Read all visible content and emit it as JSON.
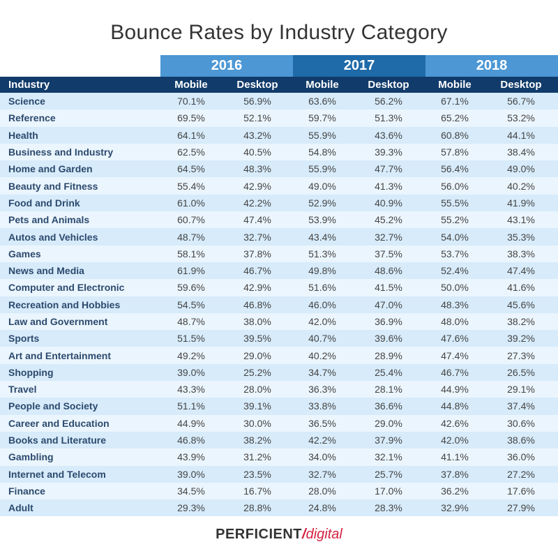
{
  "chart_data": {
    "type": "table",
    "title": "Bounce Rates by Industry Category",
    "years": [
      "2016",
      "2017",
      "2018"
    ],
    "columns": [
      "Industry",
      "Mobile",
      "Desktop",
      "Mobile",
      "Desktop",
      "Mobile",
      "Desktop"
    ],
    "rows": [
      [
        "Science",
        "70.1%",
        "56.9%",
        "63.6%",
        "56.2%",
        "67.1%",
        "56.7%"
      ],
      [
        "Reference",
        "69.5%",
        "52.1%",
        "59.7%",
        "51.3%",
        "65.2%",
        "53.2%"
      ],
      [
        "Health",
        "64.1%",
        "43.2%",
        "55.9%",
        "43.6%",
        "60.8%",
        "44.1%"
      ],
      [
        "Business and Industry",
        "62.5%",
        "40.5%",
        "54.8%",
        "39.3%",
        "57.8%",
        "38.4%"
      ],
      [
        "Home and Garden",
        "64.5%",
        "48.3%",
        "55.9%",
        "47.7%",
        "56.4%",
        "49.0%"
      ],
      [
        "Beauty and Fitness",
        "55.4%",
        "42.9%",
        "49.0%",
        "41.3%",
        "56.0%",
        "40.2%"
      ],
      [
        "Food and Drink",
        "61.0%",
        "42.2%",
        "52.9%",
        "40.9%",
        "55.5%",
        "41.9%"
      ],
      [
        "Pets and Animals",
        "60.7%",
        "47.4%",
        "53.9%",
        "45.2%",
        "55.2%",
        "43.1%"
      ],
      [
        "Autos and Vehicles",
        "48.7%",
        "32.7%",
        "43.4%",
        "32.7%",
        "54.0%",
        "35.3%"
      ],
      [
        "Games",
        "58.1%",
        "37.8%",
        "51.3%",
        "37.5%",
        "53.7%",
        "38.3%"
      ],
      [
        "News and Media",
        "61.9%",
        "46.7%",
        "49.8%",
        "48.6%",
        "52.4%",
        "47.4%"
      ],
      [
        "Computer and Electronic",
        "59.6%",
        "42.9%",
        "51.6%",
        "41.5%",
        "50.0%",
        "41.6%"
      ],
      [
        "Recreation and Hobbies",
        "54.5%",
        "46.8%",
        "46.0%",
        "47.0%",
        "48.3%",
        "45.6%"
      ],
      [
        "Law and Government",
        "48.7%",
        "38.0%",
        "42.0%",
        "36.9%",
        "48.0%",
        "38.2%"
      ],
      [
        "Sports",
        "51.5%",
        "39.5%",
        "40.7%",
        "39.6%",
        "47.6%",
        "39.2%"
      ],
      [
        "Art and Entertainment",
        "49.2%",
        "29.0%",
        "40.2%",
        "28.9%",
        "47.4%",
        "27.3%"
      ],
      [
        "Shopping",
        "39.0%",
        "25.2%",
        "34.7%",
        "25.4%",
        "46.7%",
        "26.5%"
      ],
      [
        "Travel",
        "43.3%",
        "28.0%",
        "36.3%",
        "28.1%",
        "44.9%",
        "29.1%"
      ],
      [
        "People and Society",
        "51.1%",
        "39.1%",
        "33.8%",
        "36.6%",
        "44.8%",
        "37.4%"
      ],
      [
        "Career and Education",
        "44.9%",
        "30.0%",
        "36.5%",
        "29.0%",
        "42.6%",
        "30.6%"
      ],
      [
        "Books and Literature",
        "46.8%",
        "38.2%",
        "42.2%",
        "37.9%",
        "42.0%",
        "38.6%"
      ],
      [
        "Gambling",
        "43.9%",
        "31.2%",
        "34.0%",
        "32.1%",
        "41.1%",
        "36.0%"
      ],
      [
        "Internet and Telecom",
        "39.0%",
        "23.5%",
        "32.7%",
        "25.7%",
        "37.8%",
        "27.2%"
      ],
      [
        "Finance",
        "34.5%",
        "16.7%",
        "28.0%",
        "17.0%",
        "36.2%",
        "17.6%"
      ],
      [
        "Adult",
        "29.3%",
        "28.8%",
        "24.8%",
        "28.3%",
        "32.9%",
        "27.9%"
      ]
    ]
  },
  "logo": {
    "part1": "PERFICIENT",
    "separator": "/",
    "part2": "digital"
  },
  "colors": {
    "year_header": "#4c97d4",
    "year_header_alt": "#1f6aa8",
    "column_header": "#113b6a",
    "row_odd": "#d7ebfa",
    "row_even": "#ebf5fd",
    "brand_red": "#d4213d"
  }
}
